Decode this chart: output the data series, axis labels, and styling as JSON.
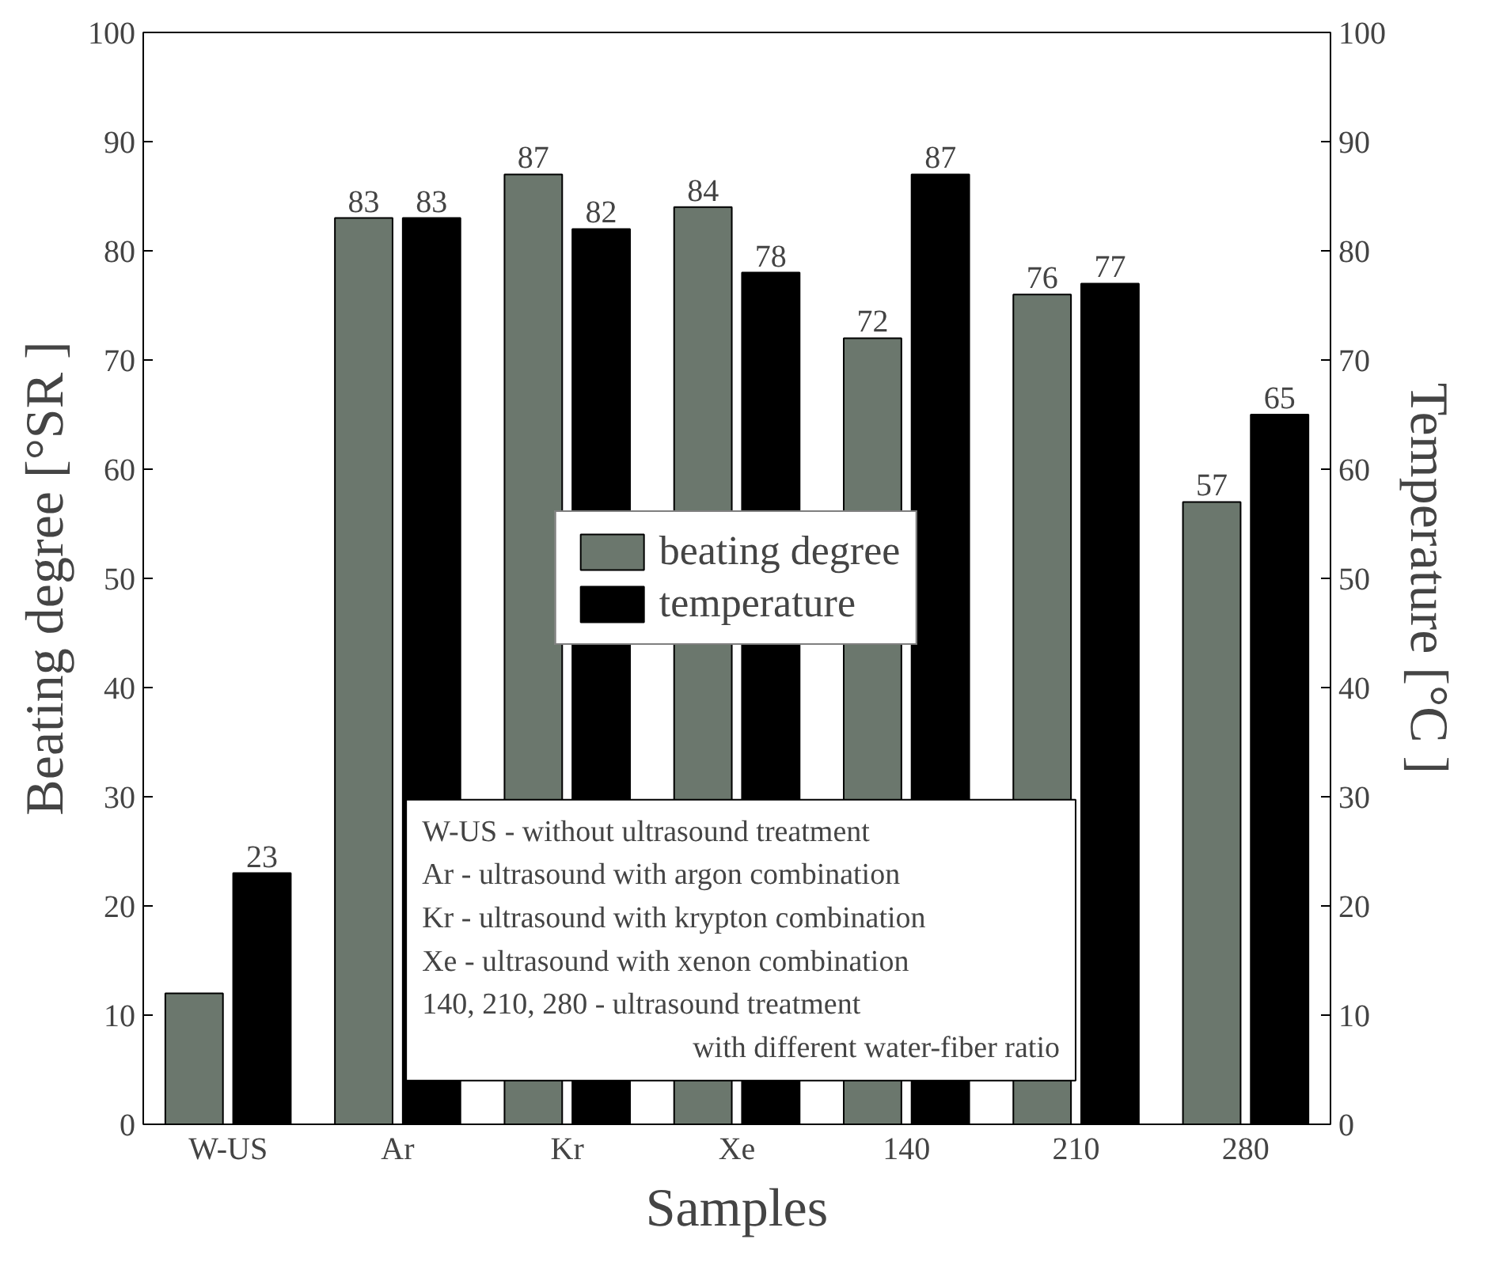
{
  "chart_data": {
    "type": "bar",
    "xlabel": "Samples",
    "ylabel": "Beating degree [°SR ]",
    "y2label": "Temperature [°C ]",
    "categories": [
      "W-US",
      "Ar",
      "Kr",
      "Xe",
      "140",
      "210",
      "280"
    ],
    "series": [
      {
        "name": "beating degree",
        "color": "#6b776d",
        "values": [
          12,
          83,
          87,
          84,
          72,
          76,
          57
        ],
        "value_labels": [
          null,
          "83",
          "87",
          "84",
          "72",
          "76",
          "57"
        ]
      },
      {
        "name": "temperature",
        "color": "#000000",
        "axis": "y2",
        "values": [
          23,
          83,
          82,
          78,
          87,
          77,
          65
        ],
        "value_labels": [
          "23",
          "83",
          "82",
          "78",
          "87",
          "77",
          "65"
        ]
      }
    ],
    "ylim": [
      0,
      100
    ],
    "yticks": [
      0,
      10,
      20,
      30,
      40,
      50,
      60,
      70,
      80,
      90,
      100
    ],
    "y2lim": [
      0,
      100
    ],
    "y2ticks": [
      0,
      10,
      20,
      30,
      40,
      50,
      60,
      70,
      80,
      90,
      100
    ],
    "grid": false,
    "legend": "center",
    "annotations": [
      "W-US - without ultrasound treatment",
      "Ar - ultrasound with argon combination",
      "Kr - ultrasound with krypton combination",
      "Xe - ultrasound with xenon combination",
      "140, 210, 280 - ultrasound treatment",
      "with different water-fiber ratio"
    ]
  }
}
